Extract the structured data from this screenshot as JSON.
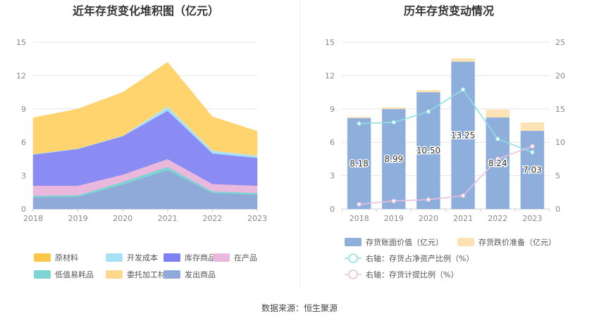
{
  "source_label": "数据来源：恒生聚源",
  "chart_data": [
    {
      "type": "area",
      "title": "近年存货变化堆积图（亿元）",
      "x": [
        "2018",
        "2019",
        "2020",
        "2021",
        "2022",
        "2023"
      ],
      "ylim": [
        0,
        15
      ],
      "yticks": [
        "0",
        "3",
        "6",
        "9",
        "12",
        "15"
      ],
      "series": [
        {
          "name": "发出商品",
          "color": "#8fa9d8",
          "values": [
            1.05,
            1.1,
            2.2,
            3.5,
            1.45,
            1.3
          ]
        },
        {
          "name": "低值易耗品",
          "color": "#7ed3d3",
          "values": [
            0.15,
            0.15,
            0.25,
            0.3,
            0.15,
            0.15
          ]
        },
        {
          "name": "在产品",
          "color": "#eab8dc",
          "values": [
            0.9,
            0.85,
            0.65,
            0.7,
            0.65,
            0.65
          ]
        },
        {
          "name": "库存商品",
          "color": "#8a8cf4",
          "values": [
            2.8,
            3.3,
            3.45,
            4.35,
            2.75,
            2.5
          ]
        },
        {
          "name": "开发成本",
          "color": "#a8e0f6",
          "values": [
            0.05,
            0.05,
            0.05,
            0.35,
            0.25,
            0.2
          ]
        },
        {
          "name": "委托加工材料",
          "color": "#fce0a0",
          "values": [
            0,
            0,
            0,
            0.1,
            0.05,
            0.05
          ]
        },
        {
          "name": "原材料",
          "color": "#ffd36e",
          "values": [
            3.25,
            3.55,
            3.9,
            3.9,
            3.0,
            2.15
          ]
        }
      ],
      "legend": [
        {
          "name": "原材料",
          "color": "#fcc64a"
        },
        {
          "name": "开发成本",
          "color": "#a8e0f6"
        },
        {
          "name": "库存商品",
          "color": "#7f80f2"
        },
        {
          "name": "在产品",
          "color": "#eab8dc"
        },
        {
          "name": "低值易耗品",
          "color": "#7ed3d3"
        },
        {
          "name": "委托加工材料",
          "color": "#fdd88a"
        },
        {
          "name": "发出商品",
          "color": "#8fa9d8"
        }
      ]
    },
    {
      "type": "bar",
      "title": "历年存货变动情况",
      "categories": [
        "2018",
        "2019",
        "2020",
        "2021",
        "2022",
        "2023"
      ],
      "ylim_left": [
        0,
        15
      ],
      "yticks_left": [
        "0",
        "3",
        "6",
        "9",
        "12",
        "15"
      ],
      "ylim_right": [
        0,
        25
      ],
      "yticks_right": [
        "0",
        "5",
        "10",
        "15",
        "20",
        "25"
      ],
      "bar_series": [
        {
          "name": "存货账面价值（亿元）",
          "color": "#8eaedc",
          "values": [
            8.18,
            8.99,
            10.5,
            13.25,
            8.24,
            7.03
          ],
          "labels": [
            "8.18",
            "8.99",
            "10.50",
            "13.25",
            "8.24",
            "7.03"
          ]
        },
        {
          "name": "存货跌价准备（亿元）",
          "color": "#fde2b4",
          "values": [
            0.1,
            0.15,
            0.2,
            0.3,
            0.7,
            0.75
          ]
        }
      ],
      "line_series": [
        {
          "name": "右轴：存货占净资产比例（%）",
          "color": "#8ee0e4",
          "values": [
            12.8,
            13.0,
            14.6,
            17.9,
            10.5,
            8.5
          ]
        },
        {
          "name": "右轴：存货计提比例（%）",
          "color": "#eac0dc",
          "values": [
            0.7,
            1.2,
            1.4,
            2.0,
            7.5,
            9.4
          ]
        }
      ]
    }
  ]
}
